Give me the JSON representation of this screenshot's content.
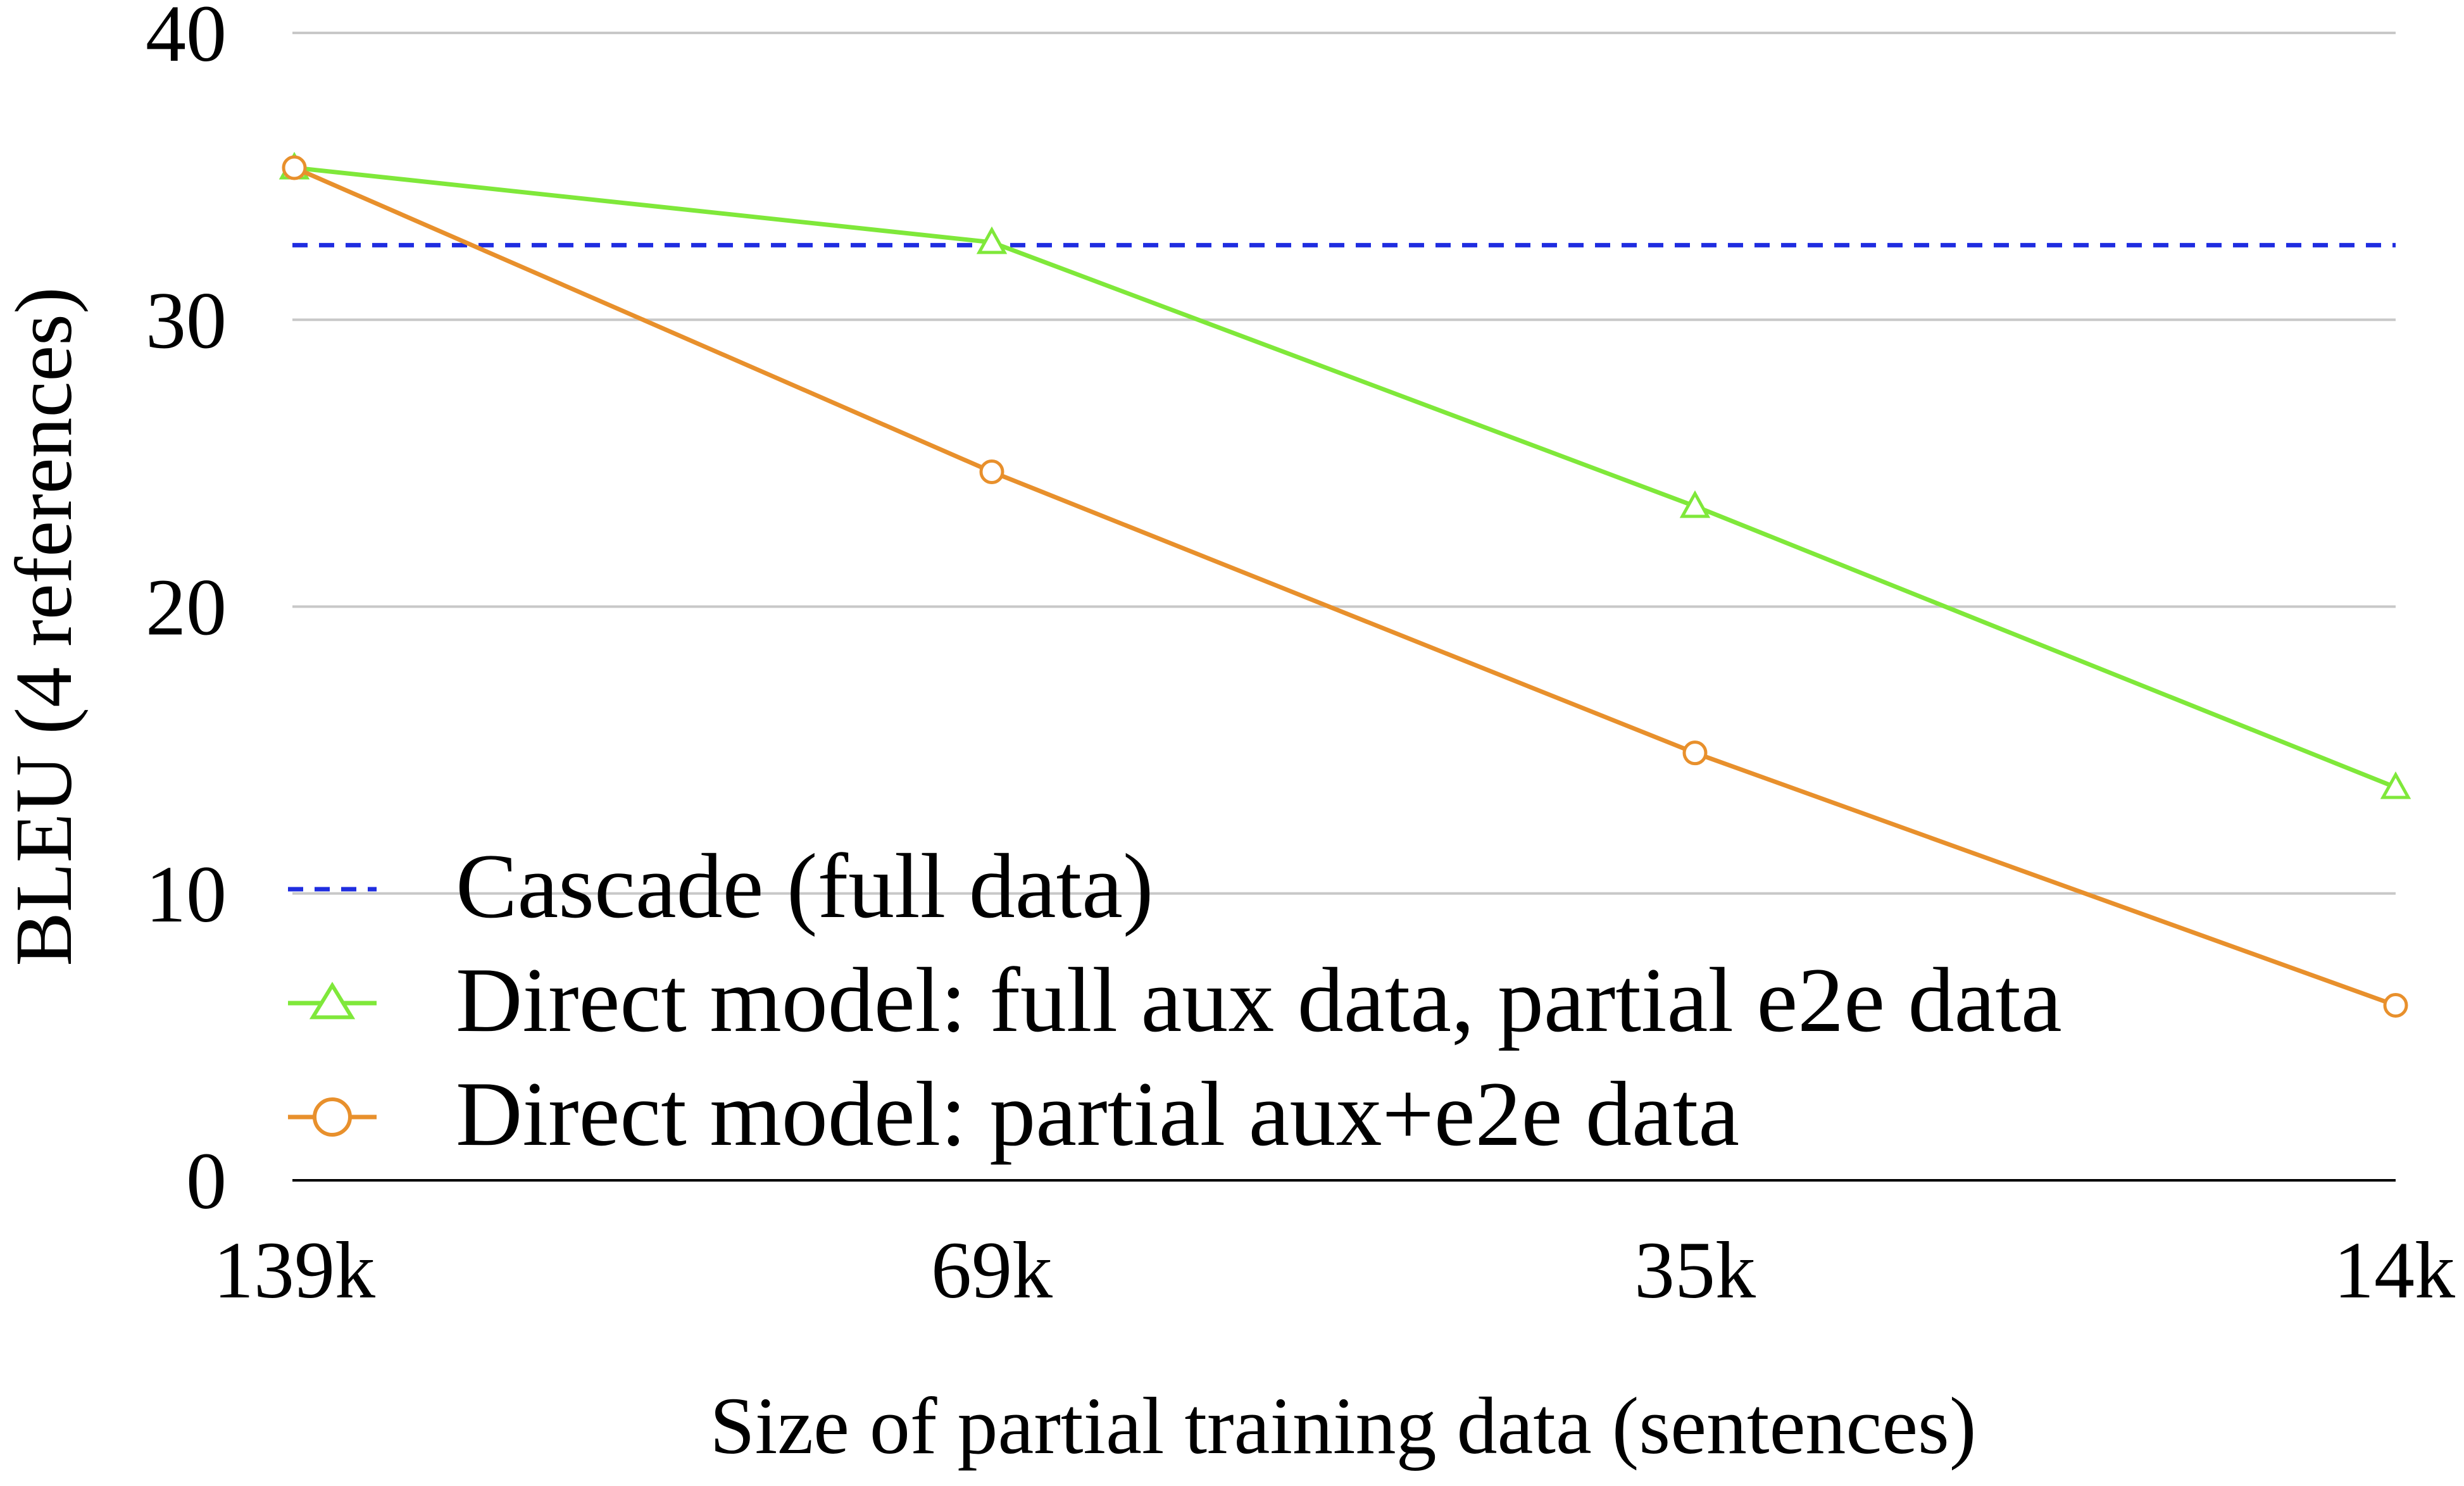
{
  "chart_data": {
    "type": "line",
    "title": "",
    "xlabel": "Size of partial training data (sentences)",
    "ylabel": "BLEU (4 references)",
    "categories": [
      "139k",
      "69k",
      "35k",
      "14k"
    ],
    "ylim": [
      0,
      40
    ],
    "yticks": [
      0,
      10,
      20,
      30,
      40
    ],
    "grid": true,
    "legend_position": "bottom-left (inside plot)",
    "series": [
      {
        "name": "Cascade (full data)",
        "style": "dashed",
        "marker": "none",
        "color": "#1f2de0",
        "values": [
          32.6,
          32.6,
          32.6,
          32.6
        ]
      },
      {
        "name": "Direct model: full aux data, partial e2e data",
        "style": "solid",
        "marker": "triangle",
        "color": "#7fe83a",
        "values": [
          35.3,
          32.7,
          23.5,
          13.7
        ]
      },
      {
        "name": "Direct model: partial aux+e2e data",
        "style": "solid",
        "marker": "circle",
        "color": "#e8902c",
        "values": [
          35.3,
          24.7,
          14.9,
          6.1
        ]
      }
    ]
  }
}
